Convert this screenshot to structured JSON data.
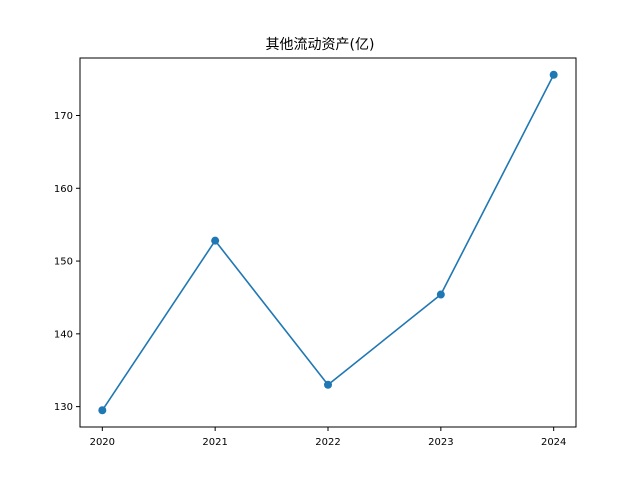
{
  "chart_data": {
    "type": "line",
    "title": "其他流动资产(亿)",
    "xlabel": "",
    "ylabel": "",
    "x": [
      "2020",
      "2021",
      "2022",
      "2023",
      "2024"
    ],
    "series": [
      {
        "values": [
          129.5,
          152.8,
          133.0,
          145.4,
          175.6
        ]
      }
    ],
    "ylim": [
      127.2,
      177.9
    ],
    "y_ticks": [
      130,
      140,
      150,
      160,
      170
    ],
    "grid": false,
    "line_color": "#1f77b4",
    "marker": "circle"
  }
}
